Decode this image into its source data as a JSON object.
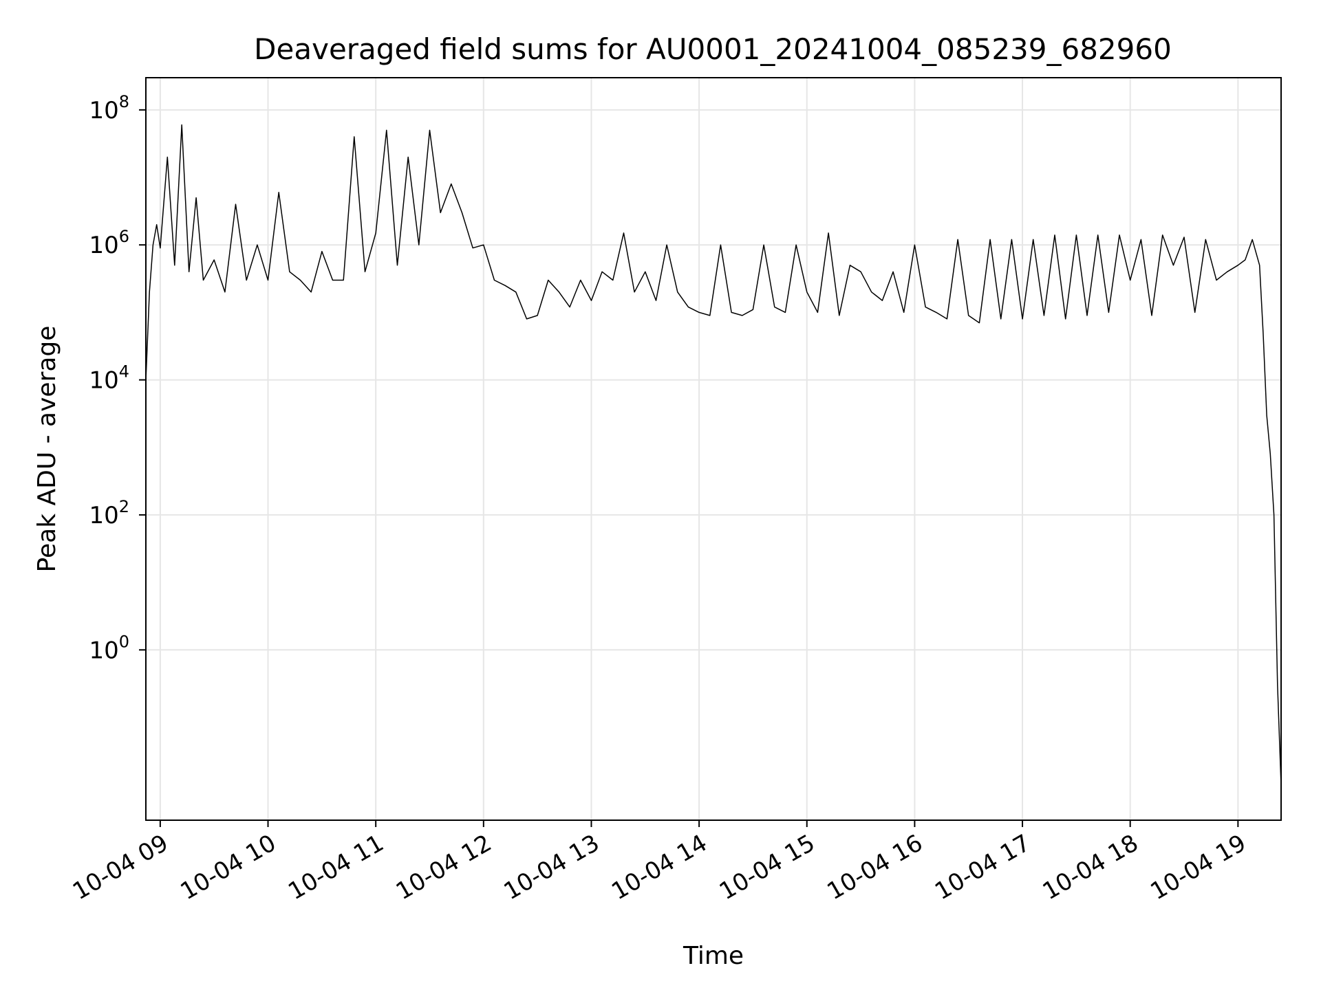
{
  "chart_data": {
    "type": "line",
    "title": "Deaveraged field sums for AU0001_20241004_085239_682960",
    "xlabel": "Time",
    "ylabel": "Peak ADU - average",
    "y_scale": "log",
    "ylim": [
      0.003,
      300000000.0
    ],
    "xlim": [
      "2024-10-04 08:52",
      "2024-10-04 19:24"
    ],
    "grid": true,
    "line_color": "#000000",
    "x_ticks": [
      "10-04 09",
      "10-04 10",
      "10-04 11",
      "10-04 12",
      "10-04 13",
      "10-04 14",
      "10-04 15",
      "10-04 16",
      "10-04 17",
      "10-04 18",
      "10-04 19"
    ],
    "y_ticks": [
      {
        "value": 1,
        "base": "10",
        "exp": "0"
      },
      {
        "value": 100,
        "base": "10",
        "exp": "2"
      },
      {
        "value": 10000,
        "base": "10",
        "exp": "4"
      },
      {
        "value": 1000000,
        "base": "10",
        "exp": "6"
      },
      {
        "value": 100000000,
        "base": "10",
        "exp": "8"
      }
    ],
    "series": [
      {
        "x": [
          "2024-10-04 08:52",
          "2024-10-04 08:54",
          "2024-10-04 08:56",
          "2024-10-04 08:58",
          "2024-10-04 09:00",
          "2024-10-04 09:04",
          "2024-10-04 09:08",
          "2024-10-04 09:12",
          "2024-10-04 09:16",
          "2024-10-04 09:20",
          "2024-10-04 09:24",
          "2024-10-04 09:30",
          "2024-10-04 09:36",
          "2024-10-04 09:42",
          "2024-10-04 09:48",
          "2024-10-04 09:54",
          "2024-10-04 10:00",
          "2024-10-04 10:06",
          "2024-10-04 10:12",
          "2024-10-04 10:18",
          "2024-10-04 10:24",
          "2024-10-04 10:30",
          "2024-10-04 10:36",
          "2024-10-04 10:42",
          "2024-10-04 10:48",
          "2024-10-04 10:54",
          "2024-10-04 11:00",
          "2024-10-04 11:06",
          "2024-10-04 11:12",
          "2024-10-04 11:18",
          "2024-10-04 11:24",
          "2024-10-04 11:30",
          "2024-10-04 11:36",
          "2024-10-04 11:42",
          "2024-10-04 11:48",
          "2024-10-04 11:54",
          "2024-10-04 12:00",
          "2024-10-04 12:06",
          "2024-10-04 12:12",
          "2024-10-04 12:18",
          "2024-10-04 12:24",
          "2024-10-04 12:30",
          "2024-10-04 12:36",
          "2024-10-04 12:42",
          "2024-10-04 12:48",
          "2024-10-04 12:54",
          "2024-10-04 13:00",
          "2024-10-04 13:06",
          "2024-10-04 13:12",
          "2024-10-04 13:18",
          "2024-10-04 13:24",
          "2024-10-04 13:30",
          "2024-10-04 13:36",
          "2024-10-04 13:42",
          "2024-10-04 13:48",
          "2024-10-04 13:54",
          "2024-10-04 14:00",
          "2024-10-04 14:06",
          "2024-10-04 14:12",
          "2024-10-04 14:18",
          "2024-10-04 14:24",
          "2024-10-04 14:30",
          "2024-10-04 14:36",
          "2024-10-04 14:42",
          "2024-10-04 14:48",
          "2024-10-04 14:54",
          "2024-10-04 15:00",
          "2024-10-04 15:06",
          "2024-10-04 15:12",
          "2024-10-04 15:18",
          "2024-10-04 15:24",
          "2024-10-04 15:30",
          "2024-10-04 15:36",
          "2024-10-04 15:42",
          "2024-10-04 15:48",
          "2024-10-04 15:54",
          "2024-10-04 16:00",
          "2024-10-04 16:06",
          "2024-10-04 16:12",
          "2024-10-04 16:18",
          "2024-10-04 16:24",
          "2024-10-04 16:30",
          "2024-10-04 16:36",
          "2024-10-04 16:42",
          "2024-10-04 16:48",
          "2024-10-04 16:54",
          "2024-10-04 17:00",
          "2024-10-04 17:06",
          "2024-10-04 17:12",
          "2024-10-04 17:18",
          "2024-10-04 17:24",
          "2024-10-04 17:30",
          "2024-10-04 17:36",
          "2024-10-04 17:42",
          "2024-10-04 17:48",
          "2024-10-04 17:54",
          "2024-10-04 18:00",
          "2024-10-04 18:06",
          "2024-10-04 18:12",
          "2024-10-04 18:18",
          "2024-10-04 18:24",
          "2024-10-04 18:30",
          "2024-10-04 18:36",
          "2024-10-04 18:42",
          "2024-10-04 18:48",
          "2024-10-04 18:54",
          "2024-10-04 19:00",
          "2024-10-04 19:04",
          "2024-10-04 19:08",
          "2024-10-04 19:12",
          "2024-10-04 19:14",
          "2024-10-04 19:16",
          "2024-10-04 19:18",
          "2024-10-04 19:20",
          "2024-10-04 19:22",
          "2024-10-04 19:24"
        ],
        "y": [
          10000,
          200000,
          1000000,
          2000000,
          900000,
          20000000,
          500000,
          60000000,
          400000,
          5000000,
          300000,
          600000,
          200000,
          4000000,
          300000,
          1000000,
          300000,
          6000000,
          400000,
          300000,
          200000,
          800000,
          300000,
          300000,
          40000000,
          400000,
          1500000,
          50000000,
          500000,
          20000000,
          1000000,
          50000000,
          3000000,
          8000000,
          3000000,
          900000,
          1000000,
          300000,
          250000,
          200000,
          80000,
          90000,
          300000,
          200000,
          120000,
          300000,
          150000,
          400000,
          300000,
          1500000,
          200000,
          400000,
          150000,
          1000000,
          200000,
          120000,
          100000,
          90000,
          1000000,
          100000,
          90000,
          110000,
          1000000,
          120000,
          100000,
          1000000,
          200000,
          100000,
          1500000,
          90000,
          500000,
          400000,
          200000,
          150000,
          400000,
          100000,
          1000000,
          120000,
          100000,
          80000,
          1200000,
          90000,
          70000,
          1200000,
          80000,
          1200000,
          80000,
          1200000,
          90000,
          1400000,
          80000,
          1400000,
          90000,
          1400000,
          100000,
          1400000,
          300000,
          1200000,
          90000,
          1400000,
          500000,
          1300000,
          100000,
          1200000,
          300000,
          400000,
          500000,
          600000,
          1200000,
          500000,
          50000,
          3000,
          800,
          100,
          0.3,
          0.01
        ]
      }
    ]
  }
}
